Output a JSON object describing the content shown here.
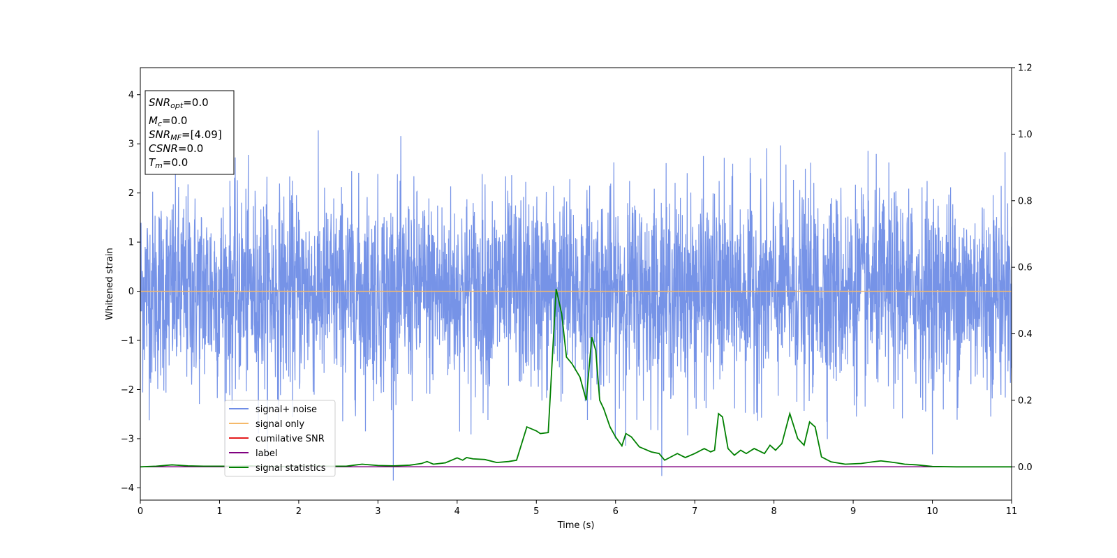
{
  "chart_data": {
    "type": "line",
    "title": "",
    "xlabel": "Time (s)",
    "ylabel": "Whitened strain",
    "xlim": [
      0,
      11
    ],
    "ylim": [
      -4.25,
      4.55
    ],
    "y2lim": [
      -0.1,
      1.2
    ],
    "x_ticks": [
      "0",
      "1",
      "2",
      "3",
      "4",
      "5",
      "6",
      "7",
      "8",
      "9",
      "10",
      "11"
    ],
    "y_ticks": [
      "−4",
      "−3",
      "−2",
      "−1",
      "0",
      "1",
      "2",
      "3",
      "4"
    ],
    "y2_ticks": [
      "0.0",
      "0.2",
      "0.4",
      "0.6",
      "0.8",
      "1.0",
      "1.2"
    ],
    "grid": false,
    "legend_position": "lower-left",
    "info_box": {
      "lines": [
        {
          "sym": "SNR",
          "sub": "opt",
          "rest": "=0.0"
        },
        {
          "sym": "M",
          "sub": "c",
          "rest": "=0.0"
        },
        {
          "sym": "SNR",
          "sub": "MF",
          "rest": "=[4.09]"
        },
        {
          "sym": "CSNR",
          "sub": "",
          "rest": "=0.0"
        },
        {
          "sym": "T",
          "sub": "m",
          "rest": "=0.0"
        }
      ]
    },
    "series": [
      {
        "name": "signal+ noise",
        "axis": "left",
        "color": "#6f8de6",
        "description_type": "noise",
        "approx_std": 1.0,
        "approx_range": [
          -3.85,
          4.18
        ],
        "n_points": 3600
      },
      {
        "name": "signal only",
        "axis": "left",
        "color": "#f5b96a",
        "x": [
          0,
          11
        ],
        "y": [
          0,
          0
        ]
      },
      {
        "name": "cumilative SNR",
        "axis": "right",
        "color": "#e41a1c",
        "x": [
          0,
          11
        ],
        "y": [
          0,
          0
        ]
      },
      {
        "name": "label",
        "axis": "right",
        "color": "#800080",
        "x": [
          0,
          11
        ],
        "y": [
          0,
          0
        ]
      },
      {
        "name": "signal statistics",
        "axis": "right",
        "color": "#008000",
        "x": [
          0,
          0.2,
          0.4,
          0.6,
          0.8,
          1.0,
          1.2,
          1.4,
          1.6,
          1.8,
          2.0,
          2.2,
          2.4,
          2.6,
          2.8,
          3.0,
          3.2,
          3.4,
          3.55,
          3.62,
          3.7,
          3.85,
          4.0,
          4.07,
          4.12,
          4.2,
          4.35,
          4.5,
          4.65,
          4.75,
          4.88,
          5.0,
          5.05,
          5.15,
          5.25,
          5.32,
          5.38,
          5.45,
          5.55,
          5.63,
          5.7,
          5.75,
          5.8,
          5.85,
          5.93,
          6.0,
          6.08,
          6.13,
          6.2,
          6.3,
          6.45,
          6.55,
          6.62,
          6.7,
          6.78,
          6.88,
          7.0,
          7.12,
          7.2,
          7.25,
          7.3,
          7.35,
          7.42,
          7.5,
          7.58,
          7.65,
          7.75,
          7.88,
          7.95,
          8.02,
          8.1,
          8.2,
          8.3,
          8.38,
          8.45,
          8.52,
          8.6,
          8.72,
          8.9,
          9.1,
          9.25,
          9.35,
          9.45,
          9.55,
          9.65,
          9.8,
          10.0,
          10.3,
          10.6,
          11.0
        ],
        "y": [
          0.0,
          0.002,
          0.006,
          0.003,
          0.002,
          0.002,
          0.002,
          0.003,
          0.001,
          0.001,
          0.002,
          0.003,
          0.002,
          0.002,
          0.008,
          0.004,
          0.003,
          0.005,
          0.01,
          0.016,
          0.008,
          0.012,
          0.027,
          0.02,
          0.028,
          0.024,
          0.022,
          0.013,
          0.016,
          0.02,
          0.12,
          0.108,
          0.1,
          0.103,
          0.535,
          0.46,
          0.33,
          0.31,
          0.27,
          0.2,
          0.39,
          0.35,
          0.2,
          0.175,
          0.12,
          0.09,
          0.063,
          0.1,
          0.09,
          0.06,
          0.045,
          0.04,
          0.02,
          0.03,
          0.04,
          0.028,
          0.04,
          0.055,
          0.045,
          0.05,
          0.16,
          0.15,
          0.055,
          0.035,
          0.05,
          0.04,
          0.055,
          0.04,
          0.065,
          0.05,
          0.07,
          0.16,
          0.085,
          0.065,
          0.135,
          0.12,
          0.03,
          0.015,
          0.008,
          0.01,
          0.015,
          0.018,
          0.015,
          0.012,
          0.008,
          0.006,
          0.001,
          0.0,
          0.0,
          0.0
        ]
      }
    ]
  }
}
